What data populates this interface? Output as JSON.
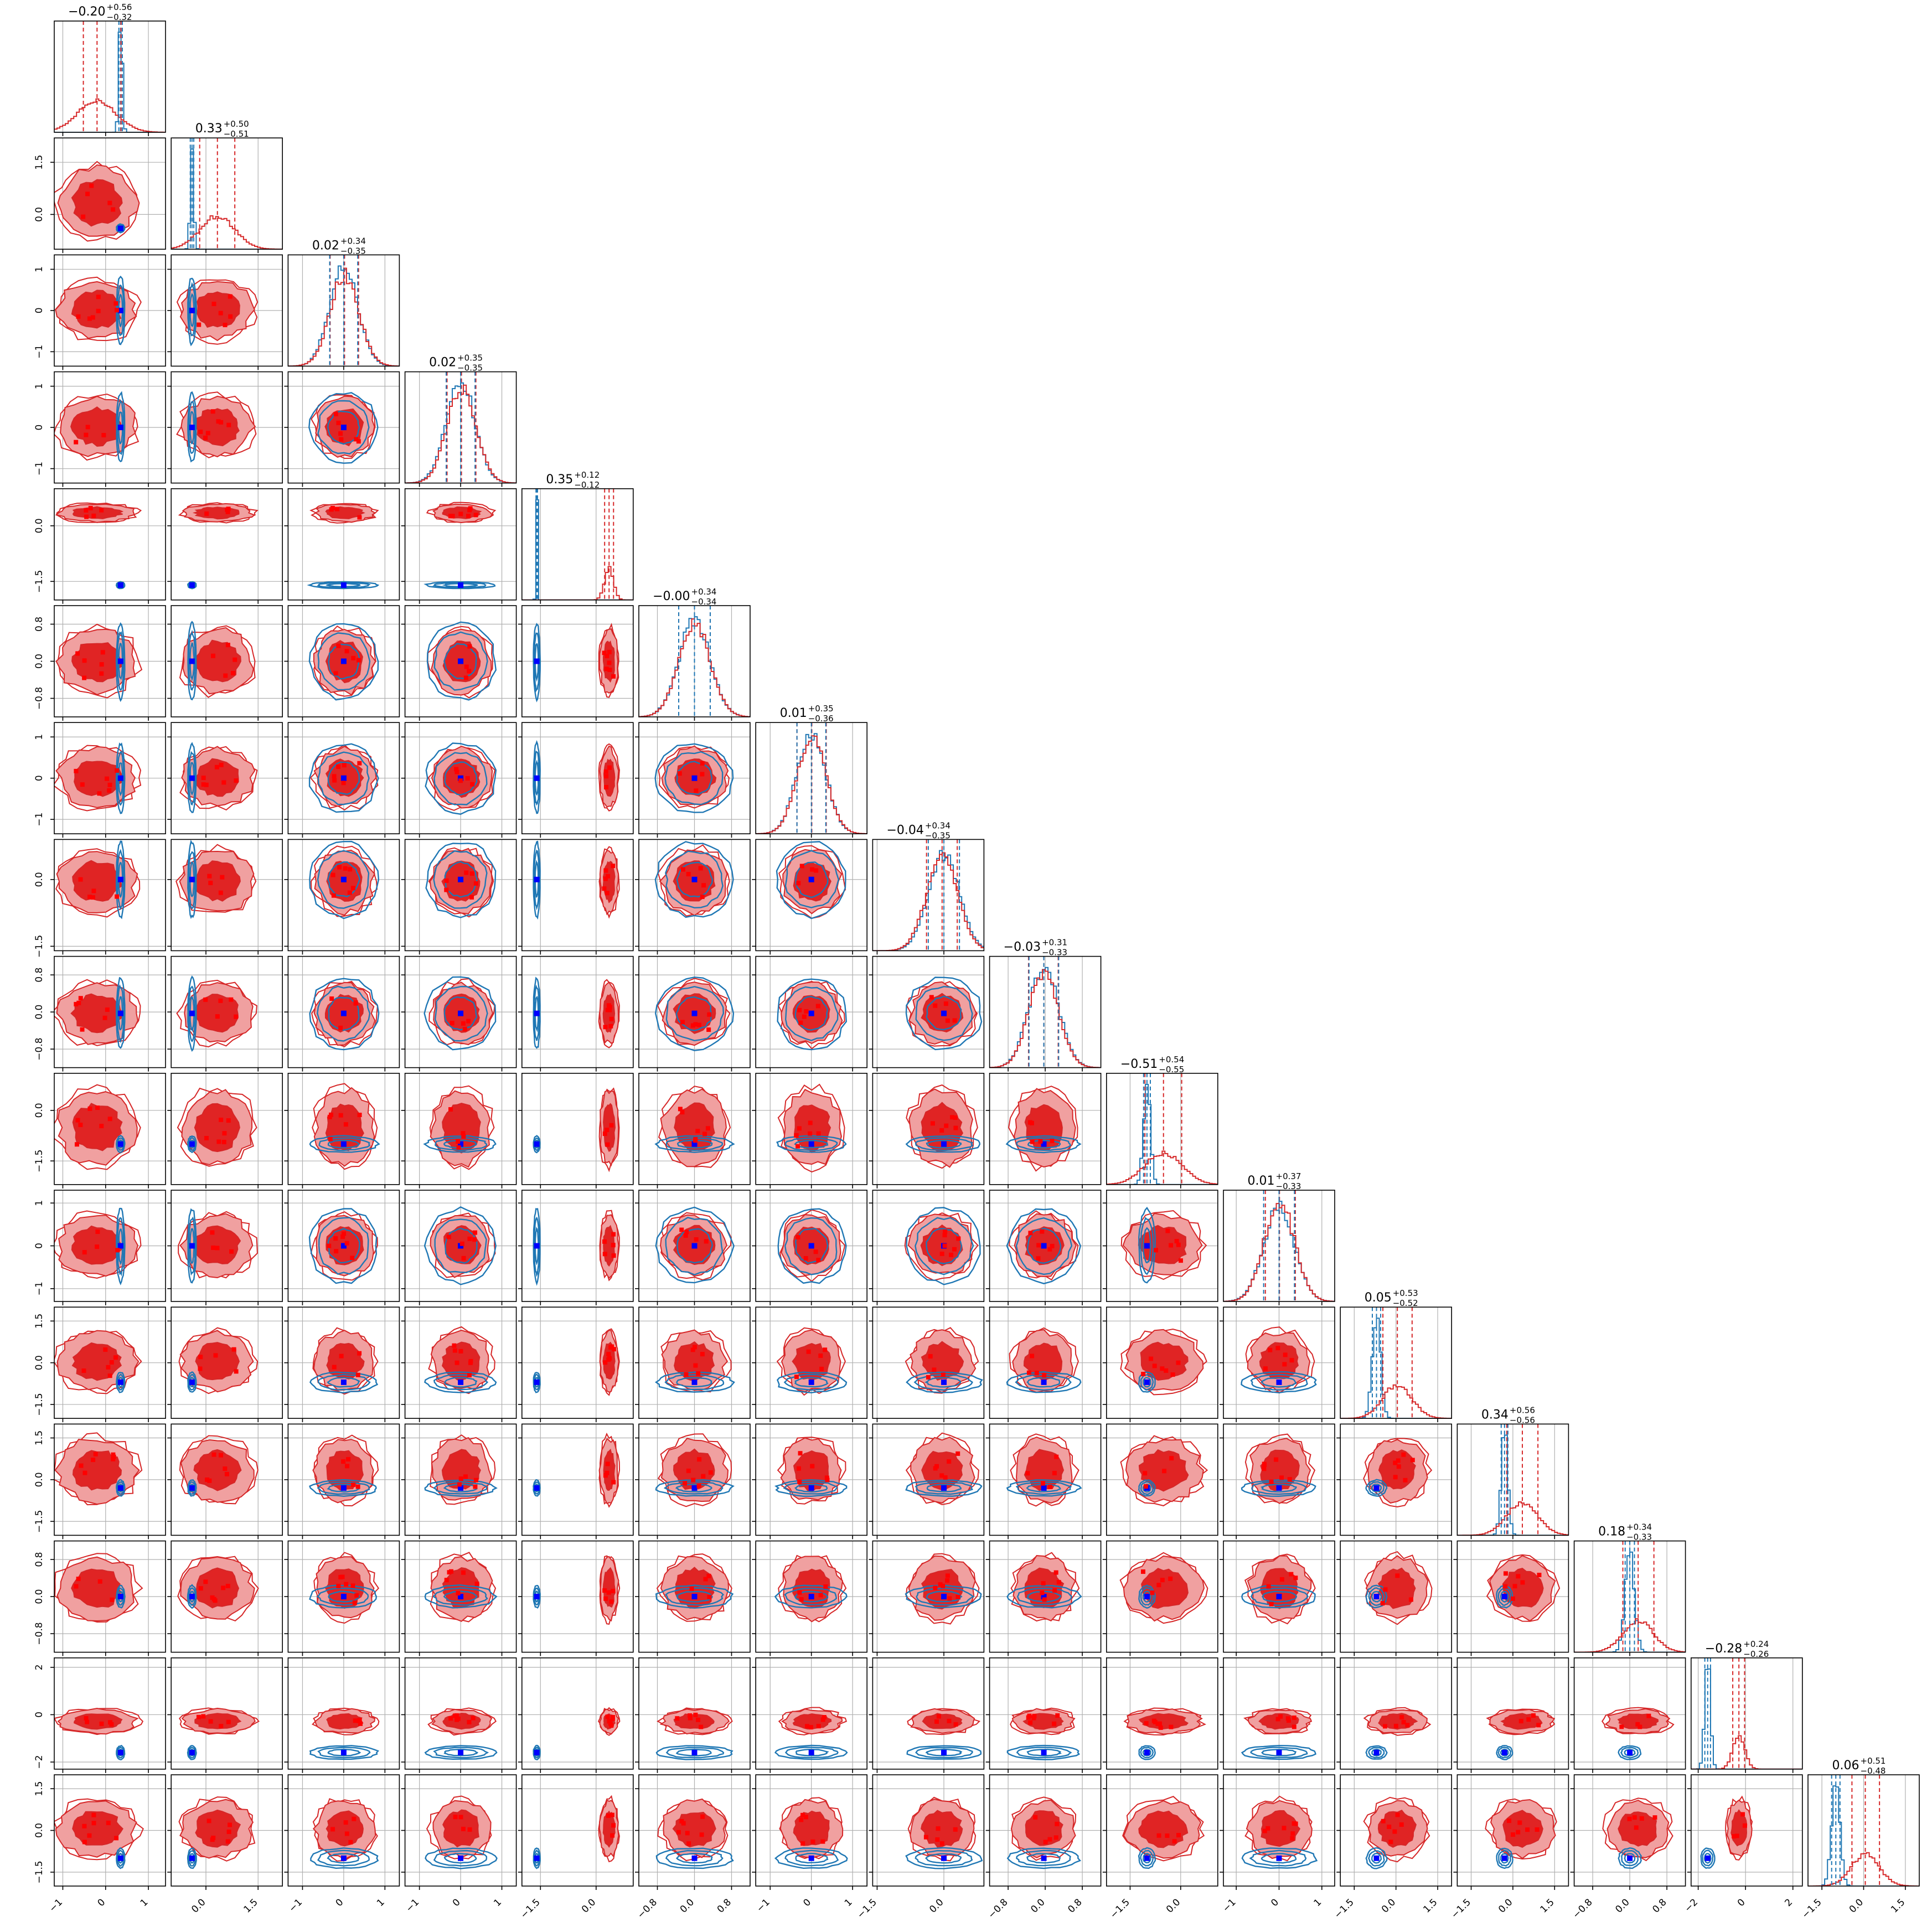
{
  "chart_data": {
    "type": "corner",
    "grid": true,
    "n_params": 16,
    "colors": {
      "red_series": "#d62728",
      "red_fill_inner": "#e02424",
      "red_fill_outer": "#f0a0a0",
      "blue_series": "#1f77b4",
      "truth_marker": "#0000ff",
      "sample_marker": "#ff0000"
    },
    "titles": [
      {
        "median": "−0.20",
        "plus": "+0.56",
        "minus": "−0.32"
      },
      {
        "median": "0.33",
        "plus": "+0.50",
        "minus": "−0.51"
      },
      {
        "median": "0.02",
        "plus": "+0.34",
        "minus": "−0.35"
      },
      {
        "median": "0.02",
        "plus": "+0.35",
        "minus": "−0.35"
      },
      {
        "median": "0.35",
        "plus": "+0.12",
        "minus": "−0.12"
      },
      {
        "median": "−0.00",
        "plus": "+0.34",
        "minus": "−0.34"
      },
      {
        "median": "0.01",
        "plus": "+0.35",
        "minus": "−0.36"
      },
      {
        "median": "−0.04",
        "plus": "+0.34",
        "minus": "−0.35"
      },
      {
        "median": "−0.03",
        "plus": "+0.31",
        "minus": "−0.33"
      },
      {
        "median": "−0.51",
        "plus": "+0.54",
        "minus": "−0.55"
      },
      {
        "median": "0.01",
        "plus": "+0.37",
        "minus": "−0.33"
      },
      {
        "median": "0.05",
        "plus": "+0.53",
        "minus": "−0.52"
      },
      {
        "median": "0.34",
        "plus": "+0.56",
        "minus": "−0.56"
      },
      {
        "median": "0.18",
        "plus": "+0.34",
        "minus": "−0.33"
      },
      {
        "median": "−0.28",
        "plus": "+0.24",
        "minus": "−0.26"
      },
      {
        "median": "0.06",
        "plus": "+0.51",
        "minus": "−0.48"
      }
    ],
    "axis_ranges": [
      [
        -1.2,
        1.4
      ],
      [
        -1.0,
        2.2
      ],
      [
        -1.35,
        1.35
      ],
      [
        -1.35,
        1.35
      ],
      [
        -2.0,
        1.0
      ],
      [
        -1.2,
        1.2
      ],
      [
        -1.35,
        1.35
      ],
      [
        -1.6,
        0.9
      ],
      [
        -1.2,
        1.2
      ],
      [
        -2.2,
        1.1
      ],
      [
        -1.3,
        1.3
      ],
      [
        -2.0,
        2.0
      ],
      [
        -2.0,
        2.0
      ],
      [
        -1.2,
        1.2
      ],
      [
        -2.3,
        2.4
      ],
      [
        -2.0,
        2.0
      ]
    ],
    "tick_labels": [
      [
        "−1",
        "0",
        "1"
      ],
      [
        "0.0",
        "1.5"
      ],
      [
        "−1",
        "0",
        "1"
      ],
      [
        "−1",
        "0",
        "1"
      ],
      [
        "−1.5",
        "0.0"
      ],
      [
        "−0.8",
        "0.0",
        "0.8"
      ],
      [
        "−1",
        "0",
        "1"
      ],
      [
        "−1.5",
        "0.0"
      ],
      [
        "−0.8",
        "0.0",
        "0.8"
      ],
      [
        "−1.5",
        "0.0"
      ],
      [
        "−1",
        "0",
        "1"
      ],
      [
        "−1.5",
        "0.0",
        "1.5"
      ],
      [
        "−1.5",
        "0.0",
        "1.5"
      ],
      [
        "−0.8",
        "0.0",
        "0.8"
      ],
      [
        "−2",
        "0",
        "2"
      ],
      [
        "−1.5",
        "0.0",
        "1.5"
      ]
    ],
    "tick_values": [
      [
        -1,
        0,
        1
      ],
      [
        0,
        1.5
      ],
      [
        -1,
        0,
        1
      ],
      [
        -1,
        0,
        1
      ],
      [
        -1.5,
        0
      ],
      [
        -0.8,
        0,
        0.8
      ],
      [
        -1,
        0,
        1
      ],
      [
        -1.5,
        0
      ],
      [
        -0.8,
        0,
        0.8
      ],
      [
        -1.5,
        0
      ],
      [
        -1,
        0,
        1
      ],
      [
        -1.5,
        0,
        1.5
      ],
      [
        -1.5,
        0,
        1.5
      ],
      [
        -0.8,
        0,
        0.8
      ],
      [
        -2,
        0,
        2
      ],
      [
        -1.5,
        0,
        1.5
      ]
    ],
    "red_posterior": {
      "means": [
        -0.2,
        0.33,
        0.02,
        0.02,
        0.35,
        0.0,
        0.01,
        -0.04,
        -0.03,
        -0.51,
        0.01,
        0.05,
        0.34,
        0.18,
        -0.28,
        0.06
      ],
      "sigmas": [
        0.45,
        0.5,
        0.35,
        0.35,
        0.12,
        0.34,
        0.35,
        0.35,
        0.32,
        0.55,
        0.35,
        0.52,
        0.56,
        0.33,
        0.25,
        0.5
      ]
    },
    "blue_posterior": {
      "means": [
        0.35,
        -0.4,
        0.0,
        0.0,
        -1.6,
        0.0,
        0.0,
        0.0,
        -0.03,
        -1.0,
        0.0,
        -0.7,
        -0.3,
        0.0,
        -1.6,
        -1.0
      ],
      "sigmas": [
        0.04,
        0.05,
        0.34,
        0.35,
        0.02,
        0.34,
        0.35,
        0.35,
        0.32,
        0.1,
        0.36,
        0.15,
        0.12,
        0.1,
        0.12,
        0.15
      ]
    },
    "red_quantiles": {
      "q16": [
        -0.52,
        -0.18,
        -0.33,
        -0.33,
        0.23,
        -0.34,
        -0.35,
        -0.39,
        -0.36,
        -1.06,
        -0.32,
        -0.47,
        -0.22,
        -0.15,
        -0.54,
        -0.42
      ],
      "q50": [
        -0.2,
        0.33,
        0.02,
        0.02,
        0.35,
        0.0,
        0.01,
        -0.04,
        -0.03,
        -0.51,
        0.01,
        0.05,
        0.34,
        0.18,
        -0.28,
        0.06
      ],
      "q84": [
        0.36,
        0.83,
        0.36,
        0.37,
        0.47,
        0.34,
        0.36,
        0.3,
        0.28,
        0.03,
        0.38,
        0.58,
        0.9,
        0.52,
        -0.04,
        0.57
      ]
    },
    "blue_quantiles": {
      "q16": [
        0.31,
        -0.45,
        -0.34,
        -0.35,
        -1.62,
        -0.34,
        -0.35,
        -0.35,
        -0.35,
        -1.1,
        -0.36,
        -0.85,
        -0.42,
        -0.1,
        -1.72,
        -1.15
      ],
      "q50": [
        0.35,
        -0.4,
        0.0,
        0.0,
        -1.6,
        0.0,
        0.0,
        0.0,
        -0.03,
        -1.0,
        0.0,
        -0.7,
        -0.3,
        0.0,
        -1.6,
        -1.0
      ],
      "q84": [
        0.39,
        -0.35,
        0.34,
        0.35,
        -1.58,
        0.34,
        0.35,
        0.35,
        0.29,
        -0.9,
        0.36,
        -0.55,
        -0.18,
        0.1,
        -1.48,
        -0.85
      ]
    }
  }
}
